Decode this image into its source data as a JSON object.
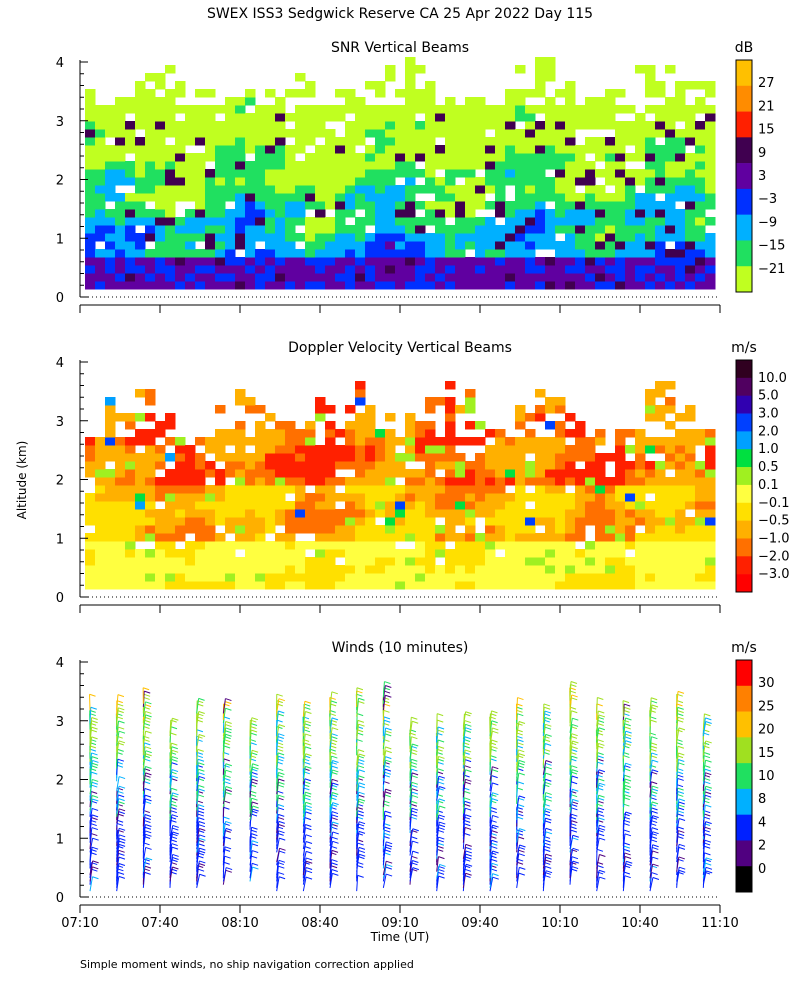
{
  "title": "SWEX ISS3 Sedgwick Reserve CA  25 Apr 2022 Day 115",
  "ylabel": "Altitude (km)",
  "xlabel": "Time (UT)",
  "footer": "Simple moment winds, no ship navigation correction applied",
  "chart_data": [
    {
      "type": "heatmap",
      "title": "SNR Vertical Beams",
      "colorbar_unit": "dB",
      "y_ticks": [
        "0",
        "1",
        "2",
        "3",
        "4"
      ],
      "ylim": [
        0,
        4
      ],
      "colorbar_labels": [
        "27",
        "21",
        "15",
        "9",
        "3",
        "−3",
        "−9",
        "−15",
        "−21"
      ],
      "colorbar_colors": [
        "#ffc000",
        "#ff8c00",
        "#ff2000",
        "#400050",
        "#6000a0",
        "#0030ff",
        "#00b0ff",
        "#20e060",
        "#c0ff20"
      ]
    },
    {
      "type": "heatmap",
      "title": "Doppler Velocity Vertical Beams",
      "colorbar_unit": "m/s",
      "y_ticks": [
        "0",
        "1",
        "2",
        "3",
        "4"
      ],
      "ylim": [
        0,
        4
      ],
      "colorbar_labels": [
        "10.0",
        "5.0",
        "3.0",
        "2.0",
        "1.0",
        "0.5",
        "0.1",
        "−0.1",
        "−0.5",
        "−1.0",
        "−2.0",
        "−3.0"
      ],
      "colorbar_colors": [
        "#300020",
        "#500060",
        "#3000b0",
        "#0040ff",
        "#00a0ff",
        "#00e040",
        "#a0f020",
        "#ffff40",
        "#ffe000",
        "#ffb000",
        "#ff7000",
        "#ff2000",
        "#ff0000"
      ]
    },
    {
      "type": "wind_barbs",
      "title": "Winds (10 minutes)",
      "colorbar_unit": "m/s",
      "y_ticks": [
        "0",
        "1",
        "2",
        "3",
        "4"
      ],
      "ylim": [
        0,
        4
      ],
      "x_ticks": [
        "07:10",
        "07:40",
        "08:10",
        "08:40",
        "09:10",
        "09:40",
        "10:10",
        "10:40",
        "11:10"
      ],
      "colorbar_labels": [
        "30",
        "25",
        "20",
        "15",
        "10",
        "8",
        "4",
        "2",
        "0"
      ],
      "colorbar_colors": [
        "#ff0000",
        "#ff8000",
        "#ffc000",
        "#a0e020",
        "#20e060",
        "#00b0ff",
        "#0020ff",
        "#500080",
        "#000000"
      ]
    }
  ]
}
